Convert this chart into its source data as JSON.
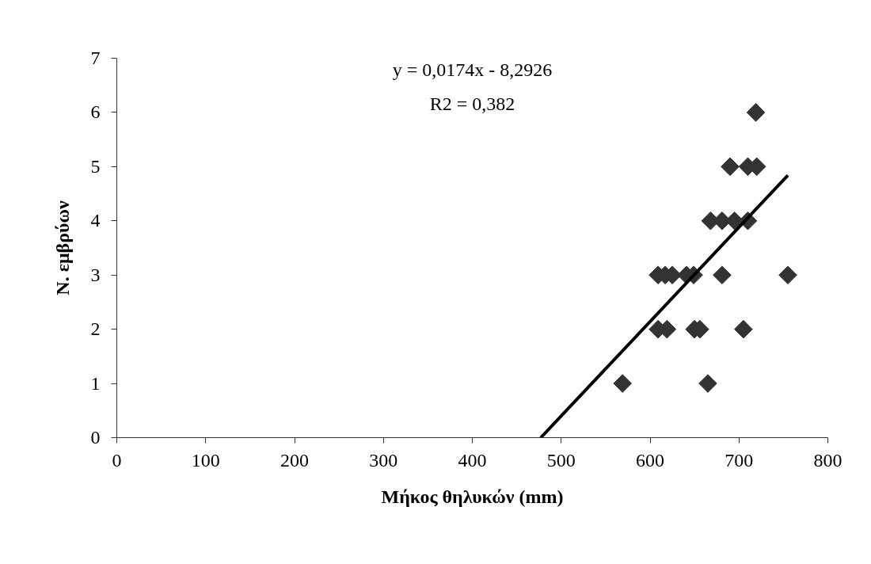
{
  "chart_data": {
    "type": "scatter",
    "xlabel": "Μήκος θηλυκών (mm)",
    "ylabel": "Ν. εμβρύων",
    "annotations": [
      "y = 0,0174x - 8,2926",
      "R2 = 0,382"
    ],
    "xlim": [
      0,
      800
    ],
    "ylim": [
      0,
      7
    ],
    "xticks": [
      0,
      100,
      200,
      300,
      400,
      500,
      600,
      700,
      800
    ],
    "yticks": [
      0,
      1,
      2,
      3,
      4,
      5,
      6,
      7
    ],
    "grid": false,
    "marker": "diamond",
    "series": [
      {
        "color": "#333333",
        "x": [
          569,
          665,
          609,
          619,
          650,
          656,
          705,
          609,
          617,
          625,
          641,
          649,
          681,
          755,
          668,
          681,
          695,
          710,
          690,
          710,
          720,
          719
        ],
        "values": [
          1,
          1,
          2,
          2,
          2,
          2,
          2,
          3,
          3,
          3,
          3,
          3,
          3,
          3,
          4,
          4,
          4,
          4,
          5,
          5,
          5,
          6
        ]
      },
      {
        "type": "line",
        "color": "#000000",
        "marker": "none",
        "line_style": "solid",
        "x": [
          477,
          755
        ],
        "values": [
          0,
          4.84
        ]
      }
    ]
  }
}
